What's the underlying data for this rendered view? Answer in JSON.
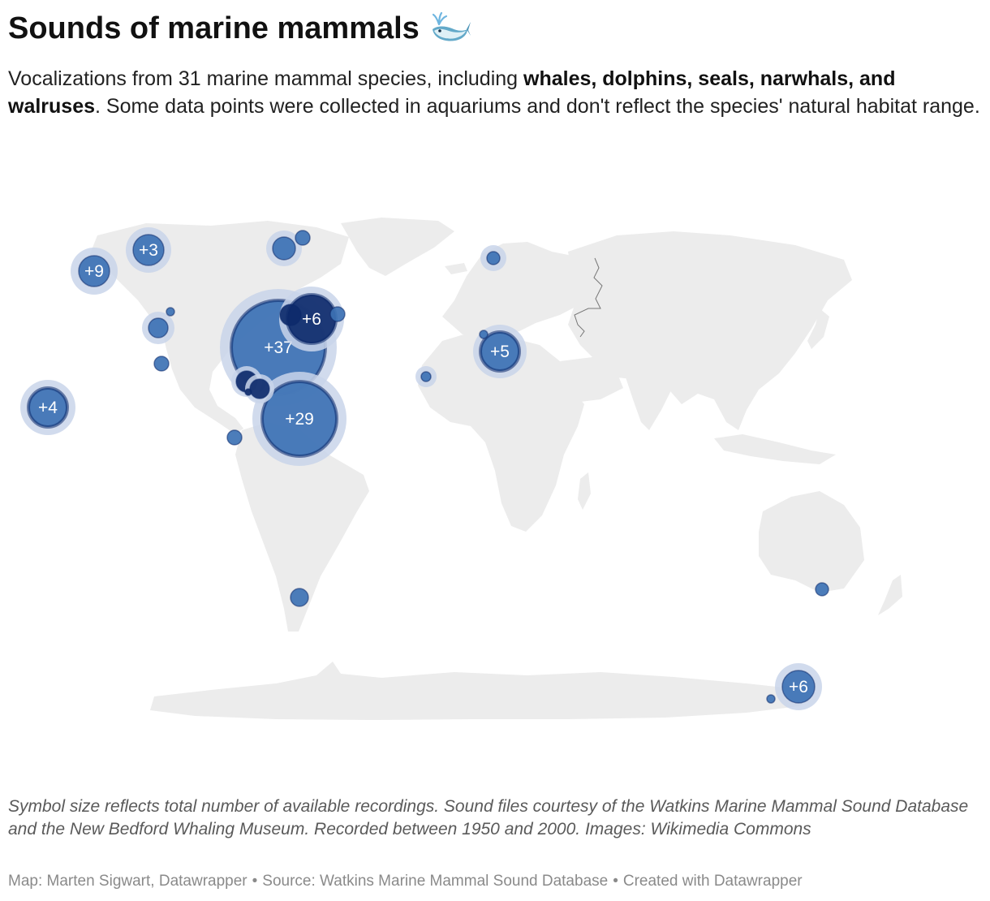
{
  "header": {
    "title": "Sounds of marine mammals",
    "subtitle_parts": {
      "lead": "Vocalizations from 31 marine mammal species, including ",
      "bold": "whales, dolphins, seals, narwhals, and walruses",
      "rest": ". Some data points were collected in aquariums and don't reflect the species' natural habitat range."
    }
  },
  "map": {
    "land_color": "#ececec",
    "marker_color": "#3d72b4",
    "marker_dark_color": "#0d2a6b",
    "halo_color": "#c9d5ea",
    "cluster_labels": {
      "western_atlantic": "+37",
      "caribbean": "+29",
      "bering": "+9",
      "hawaii": "+4",
      "gulf_of_alaska": "+3",
      "nova_scotia": "+6",
      "mediterranean": "+5",
      "antarctica": "+6"
    }
  },
  "notes": "Symbol size reflects total number of available recordings. Sound files courtesy of the Watkins Marine Mammal Sound Database and the New Bedford Whaling Museum. Recorded between 1950 and 2000. Images: Wikimedia Commons",
  "footer": {
    "map_credit": "Map: Marten Sigwart, Datawrapper",
    "source": "Source: Watkins Marine Mammal Sound Database",
    "created": "Created with Datawrapper",
    "separator": "•"
  }
}
